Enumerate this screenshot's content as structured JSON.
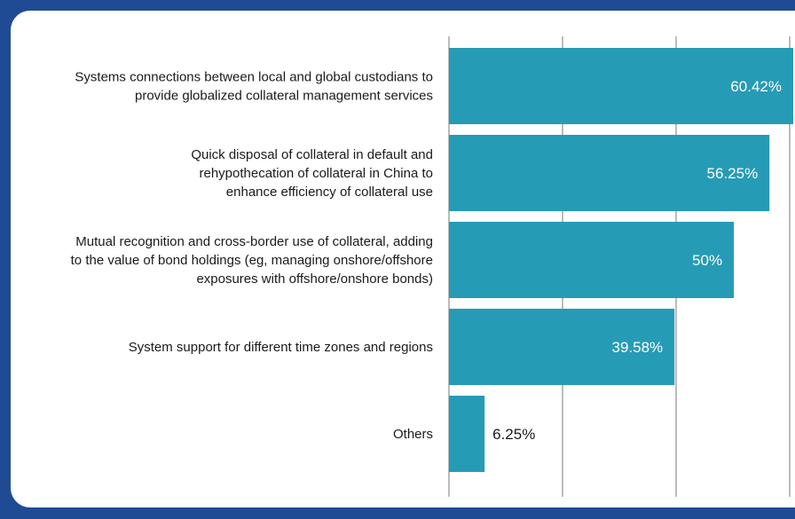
{
  "colors": {
    "frame": "#1f4b94",
    "bar": "#269bb6",
    "gridline": "#7a7a7a",
    "inside_label": "#ffffff",
    "outside_label": "#1a1a1a"
  },
  "chart_data": {
    "type": "bar",
    "orientation": "horizontal",
    "title": "",
    "xlabel": "",
    "ylabel": "",
    "xlim": [
      0,
      60.42
    ],
    "grid": true,
    "legend": "none",
    "categories": [
      [
        "Systems connections between local and global custodians to",
        "provide globalized collateral management services"
      ],
      [
        "Quick disposal of collateral in default and",
        "rehypothecation of collateral in China to",
        "enhance efficiency of collateral use"
      ],
      [
        "Mutual recognition and cross-border use of collateral, adding",
        "to the value of bond holdings (eg, managing onshore/offshore",
        "exposures with offshore/onshore bonds)"
      ],
      [
        "System support for different time zones and regions"
      ],
      [
        "Others"
      ]
    ],
    "values": [
      60.42,
      56.25,
      50,
      39.58,
      6.25
    ],
    "data_labels": [
      "60.42%",
      "56.25%",
      "50%",
      "39.58%",
      "6.25%"
    ]
  }
}
